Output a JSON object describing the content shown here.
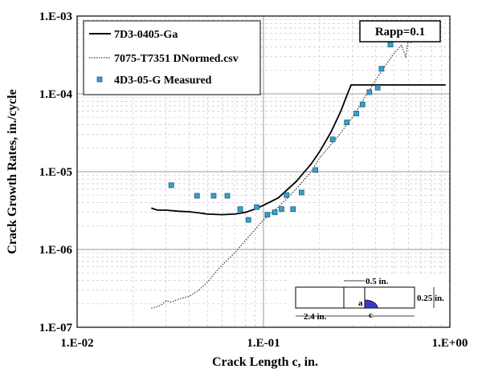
{
  "chart_data": {
    "type": "line",
    "xlabel": "Crack Length c, in.",
    "ylabel": "Crack Growth Rates, in./cycle",
    "x_scale": "log",
    "y_scale": "log",
    "xlim": [
      0.01,
      1.0
    ],
    "ylim": [
      1e-07,
      0.001
    ],
    "x_ticks": [
      0.01,
      0.1,
      1.0
    ],
    "x_tick_labels": [
      "1.E-02",
      "1.E-01",
      "1.E+00"
    ],
    "y_ticks": [
      1e-07,
      1e-06,
      1e-05,
      0.0001,
      0.001
    ],
    "y_tick_labels": [
      "1.E-07",
      "1.E-06",
      "1.E-05",
      "1.E-04",
      "1.E-03"
    ],
    "grid": "minor dashed + major",
    "legend_position": "top-left",
    "annotation_box": "Rapp=0.1",
    "series": [
      {
        "name": "7D3-0405-Ga",
        "style": "solid",
        "color": "#000000",
        "points": [
          [
            0.025,
            3.4e-06
          ],
          [
            0.027,
            3.2e-06
          ],
          [
            0.03,
            3.2e-06
          ],
          [
            0.035,
            3.1e-06
          ],
          [
            0.04,
            3.05e-06
          ],
          [
            0.045,
            2.95e-06
          ],
          [
            0.05,
            2.85e-06
          ],
          [
            0.06,
            2.8e-06
          ],
          [
            0.07,
            2.85e-06
          ],
          [
            0.08,
            3e-06
          ],
          [
            0.09,
            3.3e-06
          ],
          [
            0.1,
            3.7e-06
          ],
          [
            0.12,
            4.6e-06
          ],
          [
            0.15,
            7.5e-06
          ],
          [
            0.18,
            1.25e-05
          ],
          [
            0.2,
            1.8e-05
          ],
          [
            0.23,
            3.2e-05
          ],
          [
            0.26,
            6e-05
          ],
          [
            0.28,
            9.5e-05
          ],
          [
            0.295,
            0.00013
          ],
          [
            0.35,
            0.00013
          ],
          [
            0.5,
            0.00013
          ],
          [
            0.7,
            0.00013
          ],
          [
            0.95,
            0.00013
          ]
        ]
      },
      {
        "name": "7075-T7351 DNormed.csv",
        "style": "dotted",
        "color": "#333333",
        "points": [
          [
            0.025,
            1.75e-07
          ],
          [
            0.028,
            1.9e-07
          ],
          [
            0.03,
            2.2e-07
          ],
          [
            0.032,
            2.1e-07
          ],
          [
            0.035,
            2.3e-07
          ],
          [
            0.04,
            2.5e-07
          ],
          [
            0.045,
            3e-07
          ],
          [
            0.05,
            3.8e-07
          ],
          [
            0.055,
            5e-07
          ],
          [
            0.06,
            6.3e-07
          ],
          [
            0.07,
            9e-07
          ],
          [
            0.08,
            1.3e-06
          ],
          [
            0.09,
            1.8e-06
          ],
          [
            0.1,
            2.4e-06
          ],
          [
            0.12,
            3.5e-06
          ],
          [
            0.15,
            6e-06
          ],
          [
            0.18,
            1e-05
          ],
          [
            0.2,
            1.5e-05
          ],
          [
            0.25,
            2.8e-05
          ],
          [
            0.3,
            5e-05
          ],
          [
            0.35,
            9e-05
          ],
          [
            0.4,
            0.00015
          ],
          [
            0.45,
            0.00023
          ],
          [
            0.5,
            0.00033
          ],
          [
            0.55,
            0.00042
          ],
          [
            0.58,
            0.0003
          ],
          [
            0.6,
            0.0005
          ],
          [
            0.62,
            0.00045
          ]
        ]
      },
      {
        "name": "4D3-05-G Measured",
        "style": "markers",
        "color": "#3aa0c8",
        "points": [
          [
            0.032,
            6.7e-06
          ],
          [
            0.044,
            4.9e-06
          ],
          [
            0.054,
            4.9e-06
          ],
          [
            0.064,
            4.9e-06
          ],
          [
            0.075,
            3.3e-06
          ],
          [
            0.083,
            2.4e-06
          ],
          [
            0.092,
            3.5e-06
          ],
          [
            0.105,
            2.8e-06
          ],
          [
            0.115,
            3e-06
          ],
          [
            0.125,
            3.3e-06
          ],
          [
            0.133,
            5e-06
          ],
          [
            0.144,
            3.3e-06
          ],
          [
            0.16,
            5.4e-06
          ],
          [
            0.19,
            1.05e-05
          ],
          [
            0.235,
            2.6e-05
          ],
          [
            0.28,
            4.3e-05
          ],
          [
            0.315,
            5.6e-05
          ],
          [
            0.34,
            7.3e-05
          ],
          [
            0.37,
            0.000105
          ],
          [
            0.41,
            0.00012
          ],
          [
            0.43,
            0.00021
          ],
          [
            0.48,
            0.00043
          ]
        ]
      }
    ],
    "inset_labels": {
      "width_half": "0.5 in.",
      "thickness": "0.25 in.",
      "length": "2.4 in.",
      "a_label": "a",
      "c_label": "c"
    }
  }
}
